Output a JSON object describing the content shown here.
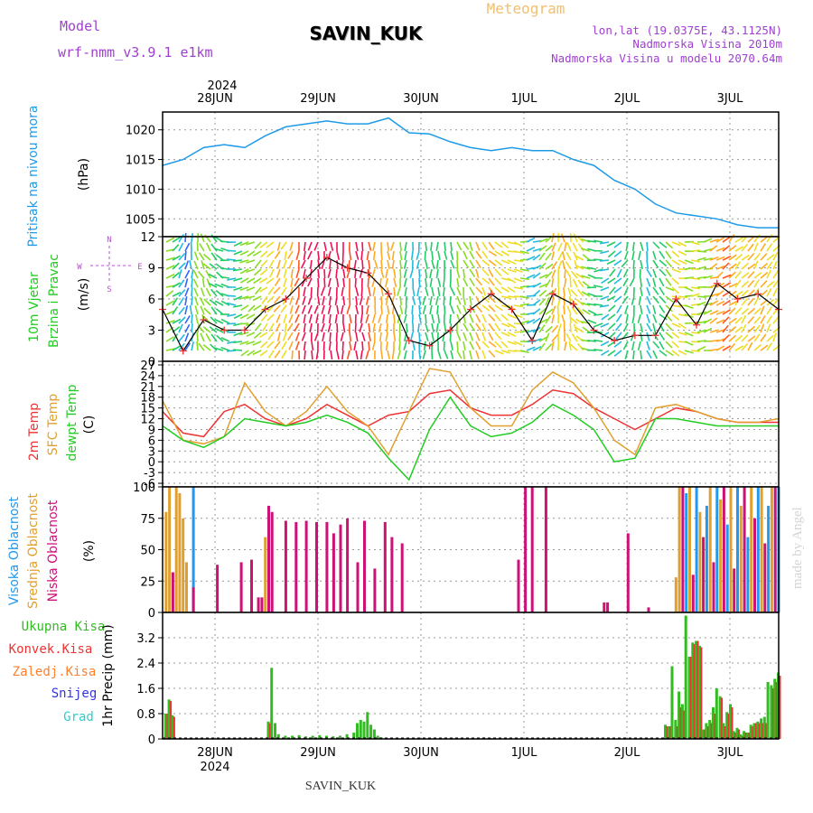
{
  "header": {
    "meteogram_label": "Meteogram",
    "model_label": "Model",
    "model_name": "wrf-nmm_v3.9.1 e1km",
    "station": "SAVIN_KUK",
    "lonlat": "lon,lat (19.0375E, 43.1125N)",
    "elevation": "Nadmorska Visina 2010m",
    "model_elevation": "Nadmorska Visina u modelu 2070.64m",
    "year_top": "2024",
    "year_bottom": "2024",
    "footer_station": "SAVIN_KUK",
    "credit": "made by Angel"
  },
  "colors": {
    "pressure": "#1e9be8",
    "temp2m": "#ee3333",
    "sfc": "#e0a030",
    "dewpt": "#22cc22",
    "low_cloud": "#cc1177",
    "mid_cloud": "#e0a030",
    "high_cloud": "#2299ee",
    "precip_total": "#33bb22",
    "precip_conv": "#ee3333",
    "precip_frozen": "#ff7f2a",
    "snow": "#3333dd",
    "hail": "#33cccc",
    "wind_marker": "#ee3333",
    "wind_dir_label": "#b54fd0",
    "model_text": "#a040d0",
    "meteogram_title": "#f0c070"
  },
  "chart_data": {
    "x_dates": [
      "28JUN",
      "29JUN",
      "30JUN",
      "1JUL",
      "2JUL",
      "3JUL"
    ],
    "panels": [
      {
        "id": "pressure",
        "type": "line",
        "title": "Pritisak na nivou mora",
        "unit": "(hPa)",
        "ylim": [
          1002,
          1023
        ],
        "yticks": [
          1005,
          1010,
          1015,
          1020
        ],
        "x_hours": [
          0,
          6,
          12,
          18,
          24,
          30,
          36,
          42,
          48,
          54,
          60,
          66,
          72,
          78,
          84,
          90,
          96,
          102,
          108,
          114,
          120,
          126,
          132,
          138,
          144,
          150,
          156,
          162,
          168,
          174,
          180
        ],
        "series": [
          {
            "key": "pressure",
            "values": [
              1014,
              1015,
              1017,
              1017.5,
              1017,
              1019,
              1020.5,
              1021,
              1021.5,
              1021,
              1021,
              1022,
              1019.5,
              1019.3,
              1018,
              1017,
              1016.5,
              1017,
              1016.5,
              1016.5,
              1015,
              1014,
              1011.5,
              1010,
              1007.5,
              1006,
              1005.5,
              1005,
              1004,
              1003.5,
              1003.5
            ]
          }
        ]
      },
      {
        "id": "wind",
        "type": "line",
        "title_1": "10m Vjetar",
        "title_2": "Brzina i Pravac",
        "unit": "(m/s)",
        "compass_n": "N",
        "compass_s": "S",
        "compass_e": "E",
        "compass_w": "W",
        "ylim": [
          0,
          12
        ],
        "yticks": [
          0,
          3,
          6,
          9,
          12
        ],
        "x_hours": [
          0,
          6,
          12,
          18,
          24,
          30,
          36,
          42,
          48,
          54,
          60,
          66,
          72,
          78,
          84,
          90,
          96,
          102,
          108,
          114,
          120,
          126,
          132,
          138,
          144,
          150,
          156,
          162,
          168,
          174,
          180
        ],
        "series": [
          {
            "key": "speed",
            "values": [
              5,
              1,
              4,
              3,
              3,
              5,
              6,
              8,
              10,
              9,
              8.5,
              6.5,
              2,
              1.5,
              3,
              5,
              6.5,
              5,
              2,
              6.5,
              5.5,
              3,
              2,
              2.5,
              2.5,
              6,
              3.5,
              7.5,
              6,
              6.5,
              5
            ]
          }
        ],
        "barb_colors": [
          "#8822ee",
          "#3366ff",
          "#22bbdd",
          "#22cc66",
          "#88dd22",
          "#eedd22",
          "#ffaa22",
          "#ff5522",
          "#ee1155"
        ]
      },
      {
        "id": "temp",
        "type": "line",
        "title_1": "2m Temp",
        "title_2": "SFC Temp",
        "title_3": "dewpt Temp",
        "unit": "(C)",
        "ylim": [
          -7,
          28
        ],
        "yticks": [
          -6,
          -3,
          0,
          3,
          6,
          9,
          12,
          15,
          18,
          21,
          24,
          27
        ],
        "x_hours": [
          0,
          6,
          12,
          18,
          24,
          30,
          36,
          42,
          48,
          54,
          60,
          66,
          72,
          78,
          84,
          90,
          96,
          102,
          108,
          114,
          120,
          126,
          132,
          138,
          144,
          150,
          156,
          162,
          168,
          174,
          180
        ],
        "series": [
          {
            "key": "temp2m",
            "values": [
              14,
              8,
              7,
              14,
              16,
              12,
              10,
              12,
              16,
              13,
              10,
              13,
              14,
              19,
              20,
              15,
              13,
              13,
              16,
              20,
              19,
              15,
              12,
              9,
              12,
              15,
              14,
              12,
              11,
              11,
              11
            ]
          },
          {
            "key": "sfc",
            "values": [
              17,
              6,
              5,
              7,
              22,
              14,
              10,
              14,
              21,
              14,
              10,
              2,
              14,
              26,
              25,
              15,
              10,
              10,
              20,
              25,
              22,
              15,
              6,
              2,
              15,
              16,
              14,
              12,
              11,
              11,
              12
            ]
          },
          {
            "key": "dewpt",
            "values": [
              10,
              6,
              4,
              7,
              12,
              11,
              10,
              11,
              13,
              11,
              8,
              1,
              -5,
              9,
              18,
              10,
              7,
              8,
              11,
              16,
              13,
              9,
              0,
              1,
              12,
              12,
              11,
              10,
              10,
              10,
              10
            ]
          }
        ]
      },
      {
        "id": "cloud",
        "type": "bar",
        "title_1": "Visoka Oblacnost",
        "title_2": "Srednja Oblacnost",
        "title_3": "Niska Oblacnost",
        "unit": "(%)",
        "ylim": [
          0,
          100
        ],
        "yticks": [
          0,
          25,
          50,
          75,
          100
        ],
        "bars": [
          [
            1,
            "mid_cloud",
            80
          ],
          [
            2,
            "mid_cloud",
            100
          ],
          [
            3,
            "low_cloud",
            32
          ],
          [
            4,
            "mid_cloud",
            100
          ],
          [
            5,
            "mid_cloud",
            95
          ],
          [
            6,
            "mid_cloud",
            75
          ],
          [
            7,
            "mid_cloud",
            40
          ],
          [
            9,
            "high_cloud",
            100
          ],
          [
            9,
            "low_cloud",
            20
          ],
          [
            16,
            "low_cloud",
            38
          ],
          [
            23,
            "low_cloud",
            40
          ],
          [
            26,
            "low_cloud",
            42
          ],
          [
            28,
            "low_cloud",
            12
          ],
          [
            29,
            "low_cloud",
            12
          ],
          [
            30,
            "mid_cloud",
            60
          ],
          [
            31,
            "low_cloud",
            85
          ],
          [
            32,
            "low_cloud",
            80
          ],
          [
            36,
            "low_cloud",
            73
          ],
          [
            39,
            "low_cloud",
            72
          ],
          [
            42,
            "low_cloud",
            73
          ],
          [
            45,
            "low_cloud",
            72
          ],
          [
            48,
            "low_cloud",
            72
          ],
          [
            50,
            "low_cloud",
            63
          ],
          [
            52,
            "low_cloud",
            70
          ],
          [
            54,
            "low_cloud",
            75
          ],
          [
            57,
            "low_cloud",
            40
          ],
          [
            59,
            "low_cloud",
            73
          ],
          [
            62,
            "low_cloud",
            35
          ],
          [
            65,
            "low_cloud",
            72
          ],
          [
            67,
            "low_cloud",
            60
          ],
          [
            70,
            "low_cloud",
            55
          ],
          [
            104,
            "low_cloud",
            42
          ],
          [
            106,
            "low_cloud",
            100
          ],
          [
            108,
            "low_cloud",
            100
          ],
          [
            112,
            "low_cloud",
            100
          ],
          [
            129,
            "low_cloud",
            8
          ],
          [
            130,
            "low_cloud",
            8
          ],
          [
            136,
            "low_cloud",
            63
          ],
          [
            142,
            "low_cloud",
            4
          ],
          [
            150,
            "mid_cloud",
            28
          ],
          [
            151,
            "mid_cloud",
            100
          ],
          [
            152,
            "low_cloud",
            100
          ],
          [
            153,
            "high_cloud",
            95
          ],
          [
            154,
            "mid_cloud",
            100
          ],
          [
            155,
            "low_cloud",
            30
          ],
          [
            156,
            "high_cloud",
            100
          ],
          [
            157,
            "mid_cloud",
            80
          ],
          [
            158,
            "low_cloud",
            60
          ],
          [
            159,
            "high_cloud",
            85
          ],
          [
            160,
            "mid_cloud",
            100
          ],
          [
            161,
            "low_cloud",
            40
          ],
          [
            162,
            "high_cloud",
            100
          ],
          [
            163,
            "mid_cloud",
            90
          ],
          [
            164,
            "low_cloud",
            100
          ],
          [
            165,
            "high_cloud",
            70
          ],
          [
            166,
            "mid_cloud",
            100
          ],
          [
            167,
            "low_cloud",
            35
          ],
          [
            168,
            "high_cloud",
            100
          ],
          [
            169,
            "mid_cloud",
            85
          ],
          [
            170,
            "low_cloud",
            100
          ],
          [
            171,
            "high_cloud",
            60
          ],
          [
            172,
            "mid_cloud",
            100
          ],
          [
            173,
            "low_cloud",
            75
          ],
          [
            174,
            "high_cloud",
            100
          ],
          [
            175,
            "mid_cloud",
            100
          ],
          [
            176,
            "low_cloud",
            55
          ],
          [
            177,
            "high_cloud",
            85
          ],
          [
            178,
            "mid_cloud",
            100
          ],
          [
            179,
            "low_cloud",
            100
          ],
          [
            180,
            "high_cloud",
            100
          ]
        ]
      },
      {
        "id": "precip",
        "type": "bar",
        "title_1": "Ukupna Kisa",
        "title_2": "Konvek.Kisa",
        "title_3": "Zaledj.Kisa",
        "title_4": "Snijeg",
        "title_5": "Grad",
        "unit": "1hr Precip (mm)",
        "ylim": [
          0,
          4
        ],
        "yticks": [
          0,
          0.8,
          1.6,
          2.4,
          3.2
        ],
        "bars": [
          [
            1,
            0.8,
            0.8
          ],
          [
            2,
            1.25,
            1.2
          ],
          [
            3,
            0.75,
            0.7
          ],
          [
            31,
            0.55,
            0.5
          ],
          [
            32,
            2.25,
            0
          ],
          [
            33,
            0.5,
            0
          ],
          [
            34,
            0.15,
            0
          ],
          [
            36,
            0.1,
            0
          ],
          [
            38,
            0.1,
            0
          ],
          [
            40,
            0.12,
            0
          ],
          [
            42,
            0.08,
            0
          ],
          [
            44,
            0.1,
            0
          ],
          [
            46,
            0.12,
            0
          ],
          [
            48,
            0.1,
            0
          ],
          [
            50,
            0.08,
            0
          ],
          [
            52,
            0.1,
            0
          ],
          [
            54,
            0.15,
            0
          ],
          [
            56,
            0.2,
            0
          ],
          [
            57,
            0.5,
            0
          ],
          [
            58,
            0.6,
            0
          ],
          [
            59,
            0.55,
            0
          ],
          [
            60,
            0.85,
            0
          ],
          [
            61,
            0.45,
            0
          ],
          [
            62,
            0.3,
            0
          ],
          [
            63,
            0.1,
            0
          ],
          [
            64,
            0.05,
            0
          ],
          [
            94,
            0.05,
            0
          ],
          [
            96,
            0.03,
            0
          ],
          [
            147,
            0.45,
            0.4
          ],
          [
            148,
            0.4,
            0.4
          ],
          [
            149,
            2.3,
            0
          ],
          [
            150,
            0.6,
            0.4
          ],
          [
            151,
            1.5,
            1.0
          ],
          [
            152,
            1.1,
            0.9
          ],
          [
            153,
            3.9,
            0
          ],
          [
            154,
            2.6,
            2.6
          ],
          [
            155,
            3.05,
            3.0
          ],
          [
            156,
            3.1,
            3.1
          ],
          [
            157,
            2.95,
            2.9
          ],
          [
            158,
            0.3,
            0.3
          ],
          [
            159,
            0.5,
            0.4
          ],
          [
            160,
            0.6,
            0.5
          ],
          [
            161,
            1.0,
            0.8
          ],
          [
            162,
            1.6,
            0
          ],
          [
            163,
            1.35,
            1.3
          ],
          [
            164,
            0.5,
            0.4
          ],
          [
            165,
            0.85,
            0.8
          ],
          [
            166,
            1.1,
            1.0
          ],
          [
            167,
            0.25,
            0.2
          ],
          [
            168,
            0.35,
            0.3
          ],
          [
            169,
            0.15,
            0.1
          ],
          [
            170,
            0.25,
            0.2
          ],
          [
            171,
            0.2,
            0.2
          ],
          [
            172,
            0.45,
            0.4
          ],
          [
            173,
            0.5,
            0.5
          ],
          [
            174,
            0.55,
            0.5
          ],
          [
            175,
            0.65,
            0.5
          ],
          [
            176,
            0.7,
            0.5
          ],
          [
            177,
            1.8,
            0
          ],
          [
            178,
            1.7,
            1.6
          ],
          [
            179,
            1.9,
            1.8
          ],
          [
            180,
            2.1,
            2.0
          ]
        ]
      }
    ]
  }
}
